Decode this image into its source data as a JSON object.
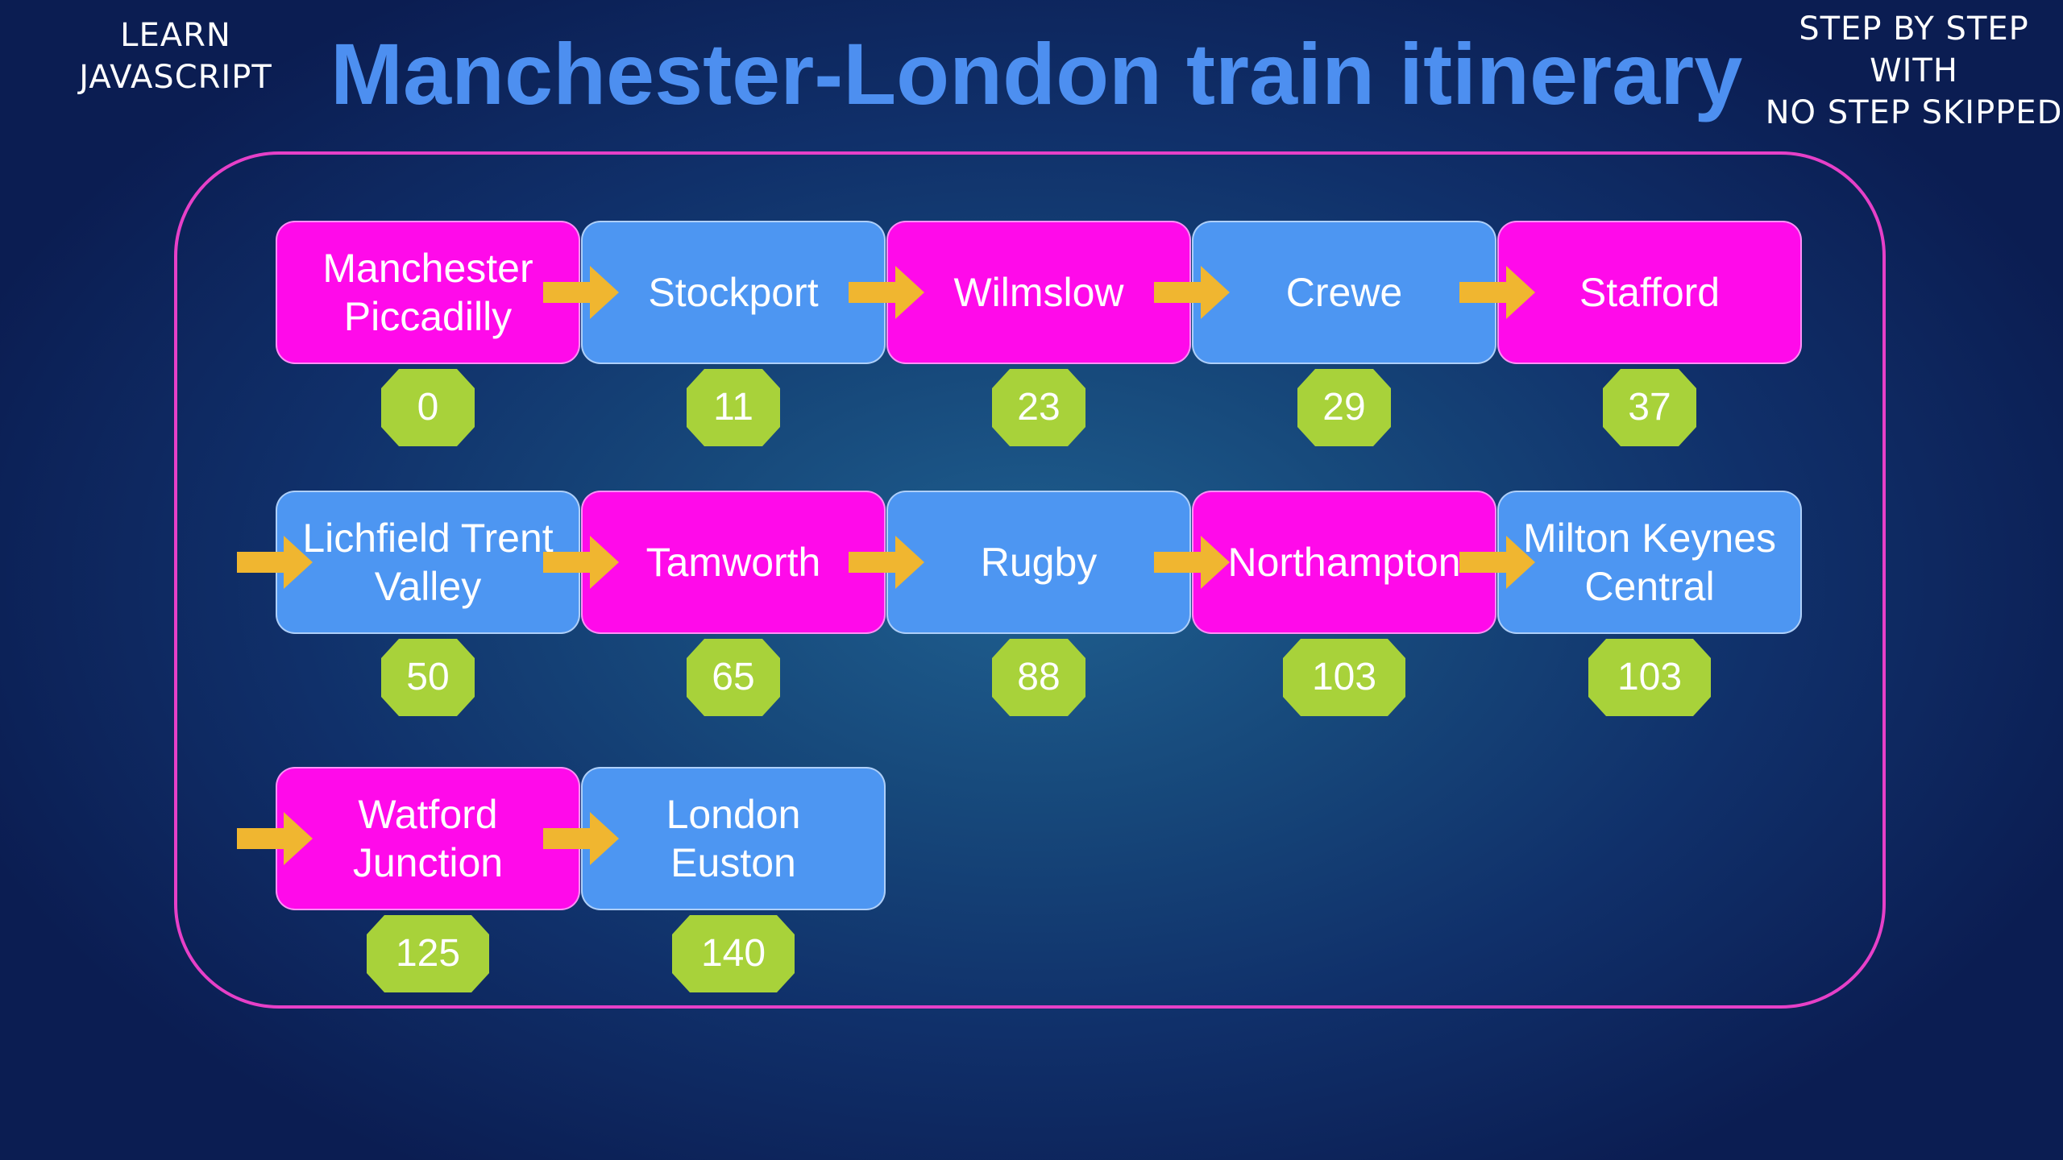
{
  "header": {
    "left_lines": [
      "LEARN",
      "JAVASCRIPT"
    ],
    "title": "Manchester-London train itinerary",
    "right_lines": [
      "STEP BY STEP",
      "WITH",
      "NO STEP SKIPPED"
    ]
  },
  "colors": {
    "magenta": "#ff0aea",
    "blue": "#4d96f2",
    "arrow": "#f0b630",
    "badge": "#a8d23a",
    "title": "#4d8ff0",
    "frame": "#e640c8"
  },
  "stations": [
    {
      "name": "Manchester\nPiccadilly",
      "miles": "0",
      "color": "magenta"
    },
    {
      "name": "Stockport",
      "miles": "11",
      "color": "blue"
    },
    {
      "name": "Wilmslow",
      "miles": "23",
      "color": "magenta"
    },
    {
      "name": "Crewe",
      "miles": "29",
      "color": "blue"
    },
    {
      "name": "Stafford",
      "miles": "37",
      "color": "magenta"
    },
    {
      "name": "Lichfield Trent\nValley",
      "miles": "50",
      "color": "blue"
    },
    {
      "name": "Tamworth",
      "miles": "65",
      "color": "magenta"
    },
    {
      "name": "Rugby",
      "miles": "88",
      "color": "blue"
    },
    {
      "name": "Northampton",
      "miles": "103",
      "color": "magenta"
    },
    {
      "name": "Milton Keynes\nCentral",
      "miles": "103",
      "color": "blue"
    },
    {
      "name": "Watford\nJunction",
      "miles": "125",
      "color": "magenta"
    },
    {
      "name": "London\nEuston",
      "miles": "140",
      "color": "blue"
    }
  ]
}
